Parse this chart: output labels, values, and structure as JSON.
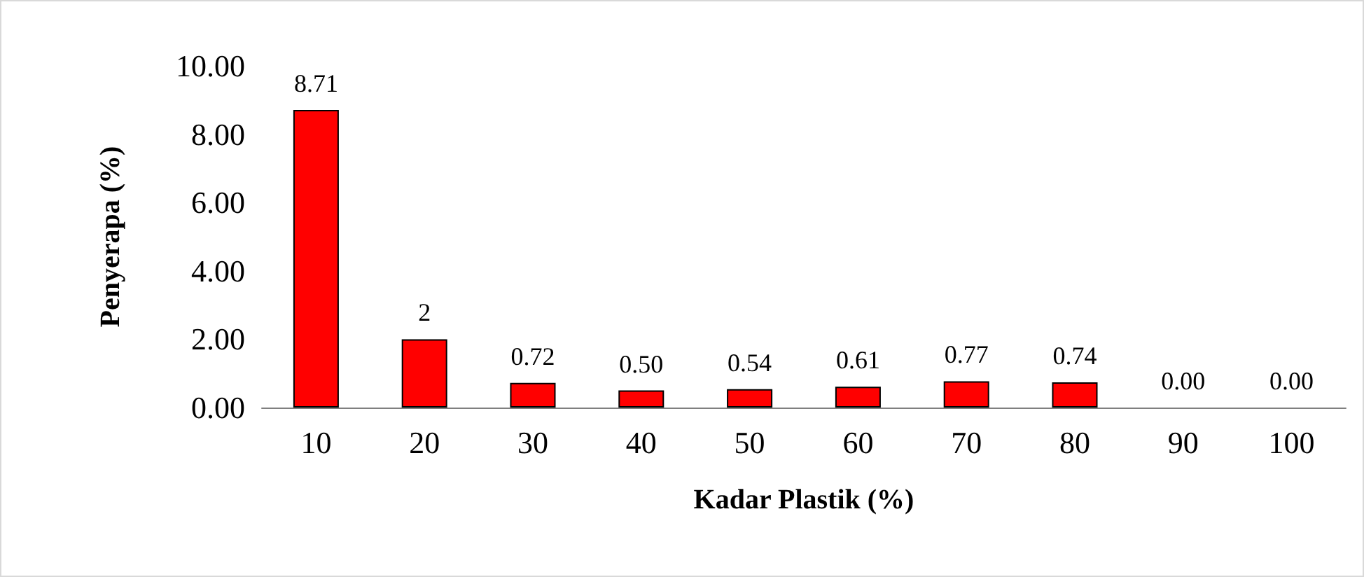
{
  "chart_data": {
    "type": "bar",
    "xlabel": "Kadar Plastik (%)",
    "ylabel": "Penyerapa (%)",
    "categories": [
      "10",
      "20",
      "30",
      "40",
      "50",
      "60",
      "70",
      "80",
      "90",
      "100"
    ],
    "values": [
      8.71,
      2,
      0.72,
      0.5,
      0.54,
      0.61,
      0.77,
      0.74,
      0.0,
      0.0
    ],
    "value_labels": [
      "8.71",
      "2",
      "0.72",
      "0.50",
      "0.54",
      "0.61",
      "0.77",
      "0.74",
      "0.00",
      "0.00"
    ],
    "color": "#ff0000",
    "ylim": [
      0,
      10
    ],
    "yticks": [
      {
        "value": 0,
        "label": "0.00"
      },
      {
        "value": 2,
        "label": "2.00"
      },
      {
        "value": 4,
        "label": "4.00"
      },
      {
        "value": 6,
        "label": "6.00"
      },
      {
        "value": 8,
        "label": "8.00"
      },
      {
        "value": 10,
        "label": "10.00"
      }
    ]
  }
}
